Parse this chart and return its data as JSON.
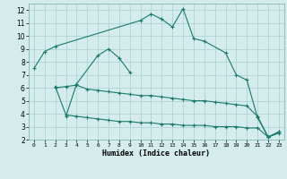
{
  "xlabel": "Humidex (Indice chaleur)",
  "ylabel": "",
  "background_color": "#d4ecec",
  "grid_color": "#aacece",
  "line_color": "#1a7a6a",
  "xlim": [
    -0.5,
    23.5
  ],
  "ylim": [
    2,
    12.5
  ],
  "xticks": [
    0,
    1,
    2,
    3,
    4,
    5,
    6,
    7,
    8,
    9,
    10,
    11,
    12,
    13,
    14,
    15,
    16,
    17,
    18,
    19,
    20,
    21,
    22,
    23
  ],
  "yticks": [
    2,
    3,
    4,
    5,
    6,
    7,
    8,
    9,
    10,
    11,
    12
  ],
  "line1_x": [
    0,
    1,
    2,
    10,
    11,
    12,
    13,
    14,
    15,
    16,
    18,
    19,
    20,
    21,
    22,
    23
  ],
  "line1_y": [
    7.5,
    8.8,
    9.2,
    11.2,
    11.7,
    11.3,
    10.7,
    12.1,
    9.8,
    9.6,
    8.7,
    7.0,
    6.6,
    3.7,
    2.2,
    2.6
  ],
  "line2_x": [
    3,
    4,
    6,
    7,
    8,
    9
  ],
  "line2_y": [
    3.8,
    6.3,
    8.5,
    9.0,
    8.3,
    7.2
  ],
  "line3_x": [
    2,
    3,
    4,
    5,
    6,
    7,
    8,
    9,
    10,
    11,
    12,
    13,
    14,
    15,
    16,
    17,
    18,
    19,
    20,
    21,
    22,
    23
  ],
  "line3_y": [
    6.1,
    3.9,
    3.8,
    3.7,
    3.6,
    3.5,
    3.4,
    3.4,
    3.3,
    3.3,
    3.2,
    3.2,
    3.1,
    3.1,
    3.1,
    3.0,
    3.0,
    3.0,
    2.9,
    2.9,
    2.2,
    2.5
  ],
  "line4_x": [
    2,
    3,
    4,
    5,
    6,
    7,
    8,
    9,
    10,
    11,
    12,
    13,
    14,
    15,
    16,
    17,
    18,
    19,
    20,
    21,
    22,
    23
  ],
  "line4_y": [
    6.0,
    6.1,
    6.2,
    5.9,
    5.8,
    5.7,
    5.6,
    5.5,
    5.4,
    5.4,
    5.3,
    5.2,
    5.1,
    5.0,
    5.0,
    4.9,
    4.8,
    4.7,
    4.6,
    3.8,
    2.2,
    2.6
  ]
}
